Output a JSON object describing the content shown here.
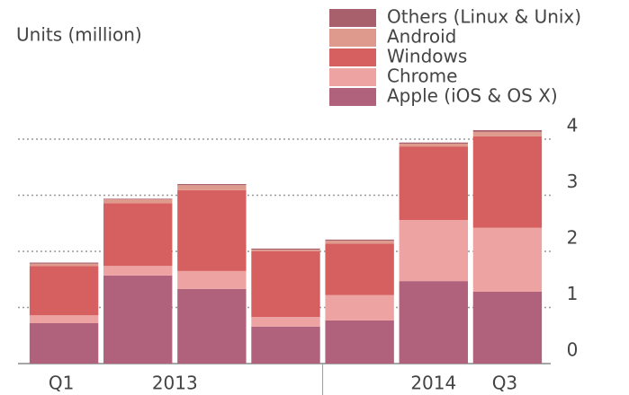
{
  "chart_data": {
    "type": "stacked-bar",
    "subtitle": "Units (million)",
    "categories": [
      "Q1",
      null,
      null,
      null,
      null,
      null,
      "Q3"
    ],
    "groups": [
      {
        "label": "2013",
        "start": 0,
        "end": 3
      },
      {
        "label": "2014",
        "start": 4,
        "end": 6
      }
    ],
    "series": [
      {
        "name": "Apple (iOS & OS X)",
        "color": "#b0627c",
        "values": [
          0.72,
          1.57,
          1.33,
          0.66,
          0.77,
          1.47,
          1.28
        ]
      },
      {
        "name": "Chrome",
        "color": "#eea3a3",
        "values": [
          0.14,
          0.17,
          0.32,
          0.17,
          0.45,
          1.09,
          1.14
        ]
      },
      {
        "name": "Windows",
        "color": "#d6605f",
        "values": [
          0.88,
          1.12,
          1.44,
          1.17,
          0.92,
          1.31,
          1.63
        ]
      },
      {
        "name": "Android",
        "color": "#de9a8c",
        "values": [
          0.04,
          0.07,
          0.09,
          0.03,
          0.05,
          0.05,
          0.08
        ]
      },
      {
        "name": "Others (Linux & Unix)",
        "color": "#a8606c",
        "values": [
          0.02,
          0.01,
          0.02,
          0.02,
          0.02,
          0.02,
          0.03
        ]
      }
    ],
    "ylim": [
      0,
      4.2
    ],
    "yticks": [
      0,
      1,
      2,
      3,
      4
    ],
    "grid": true,
    "legend": "top-right"
  }
}
